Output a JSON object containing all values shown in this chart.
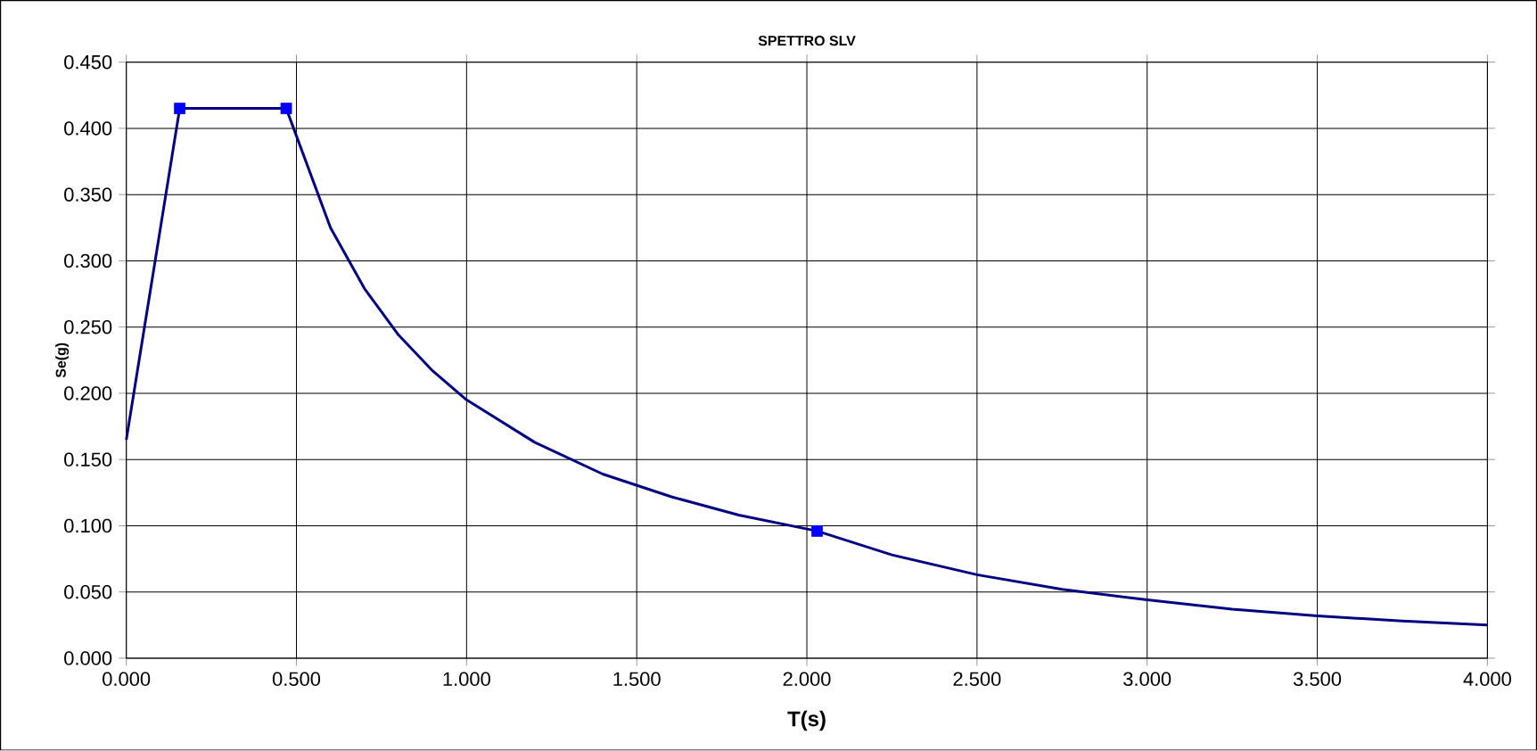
{
  "chart_data": {
    "type": "line",
    "title": "SPETTRO SLV",
    "xlabel": "T(s)",
    "ylabel": "Se(g)",
    "xlim": [
      0,
      4
    ],
    "ylim": [
      0,
      0.45
    ],
    "xticks": [
      {
        "value": 0,
        "label": "0.000"
      },
      {
        "value": 0.5,
        "label": "0.500"
      },
      {
        "value": 1,
        "label": "1.000"
      },
      {
        "value": 1.5,
        "label": "1.500"
      },
      {
        "value": 2,
        "label": "2.000"
      },
      {
        "value": 2.5,
        "label": "2.500"
      },
      {
        "value": 3,
        "label": "3.000"
      },
      {
        "value": 3.5,
        "label": "3.500"
      },
      {
        "value": 4,
        "label": "4.000"
      }
    ],
    "yticks": [
      {
        "value": 0,
        "label": "0.000"
      },
      {
        "value": 0.05,
        "label": "0.050"
      },
      {
        "value": 0.1,
        "label": "0.100"
      },
      {
        "value": 0.15,
        "label": "0.150"
      },
      {
        "value": 0.2,
        "label": "0.200"
      },
      {
        "value": 0.25,
        "label": "0.250"
      },
      {
        "value": 0.3,
        "label": "0.300"
      },
      {
        "value": 0.35,
        "label": "0.350"
      },
      {
        "value": 0.4,
        "label": "0.400"
      },
      {
        "value": 0.45,
        "label": "0.450"
      }
    ],
    "grid": true,
    "series": [
      {
        "marker": "none",
        "color": "#000080",
        "x": [
          0,
          0.157,
          0.47,
          0.6,
          0.7,
          0.8,
          0.9,
          1.0,
          1.2,
          1.4,
          1.6,
          1.8,
          2.03,
          2.25,
          2.5,
          2.75,
          3.0,
          3.25,
          3.5,
          3.75,
          4.0
        ],
        "values": [
          0.165,
          0.415,
          0.415,
          0.325,
          0.279,
          0.244,
          0.217,
          0.195,
          0.163,
          0.139,
          0.122,
          0.108,
          0.096,
          0.078,
          0.063,
          0.052,
          0.044,
          0.037,
          0.032,
          0.028,
          0.025
        ]
      },
      {
        "type": "scatter",
        "marker": "square",
        "color": "#0000ff",
        "x": [
          0.157,
          0.47,
          2.03
        ],
        "values": [
          0.415,
          0.415,
          0.096
        ]
      }
    ]
  }
}
